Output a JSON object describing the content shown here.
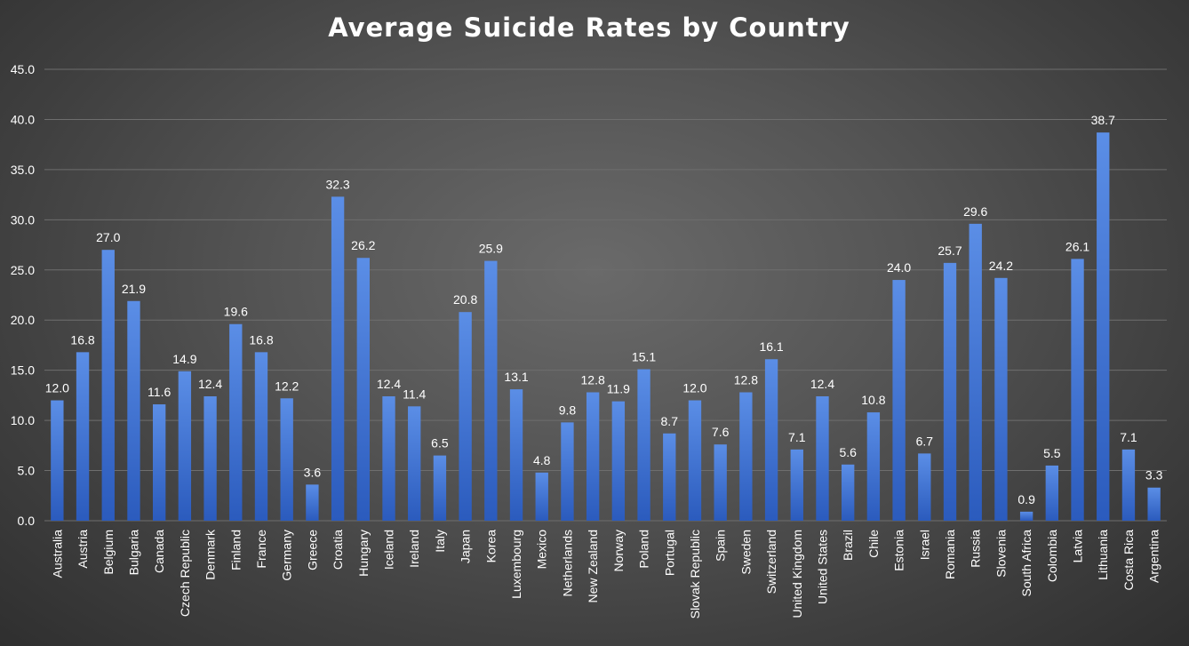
{
  "chart_data": {
    "type": "bar",
    "title": "Average Suicide Rates by Country",
    "xlabel": "",
    "ylabel": "",
    "ylim": [
      0,
      45
    ],
    "yticks": [
      "0.0",
      "5.0",
      "10.0",
      "15.0",
      "20.0",
      "25.0",
      "30.0",
      "35.0",
      "40.0",
      "45.0"
    ],
    "grid": true,
    "legend": "none",
    "categories": [
      "Australia",
      "Austria",
      "Belgium",
      "Bulgaria",
      "Canada",
      "Czech Republic",
      "Denmark",
      "Finland",
      "France",
      "Germany",
      "Greece",
      "Croatia",
      "Hungary",
      "Iceland",
      "Ireland",
      "Italy",
      "Japan",
      "Korea",
      "Luxembourg",
      "Mexico",
      "Netherlands",
      "New Zealand",
      "Norway",
      "Poland",
      "Portugal",
      "Slovak Republic",
      "Spain",
      "Sweden",
      "Switzerland",
      "United Kingdom",
      "United States",
      "Brazil",
      "Chile",
      "Estonia",
      "Israel",
      "Romania",
      "Russia",
      "Slovenia",
      "South Africa",
      "Colombia",
      "Latvia",
      "Lithuania",
      "Costa Rica",
      "Argentina"
    ],
    "values": [
      12.0,
      16.8,
      27.0,
      21.9,
      11.6,
      14.9,
      12.4,
      19.6,
      16.8,
      12.2,
      3.6,
      32.3,
      26.2,
      12.4,
      11.4,
      6.5,
      20.8,
      25.9,
      13.1,
      4.8,
      9.8,
      12.8,
      11.9,
      15.1,
      8.7,
      12.0,
      7.6,
      12.8,
      16.1,
      7.1,
      12.4,
      5.6,
      10.8,
      24.0,
      6.7,
      25.7,
      29.6,
      24.2,
      0.9,
      5.5,
      26.1,
      38.7,
      7.1,
      3.3
    ],
    "data_labels": [
      "12.0",
      "16.8",
      "27.0",
      "21.9",
      "11.6",
      "14.9",
      "12.4",
      "19.6",
      "16.8",
      "12.2",
      "3.6",
      "32.3",
      "26.2",
      "12.4",
      "11.4",
      "6.5",
      "20.8",
      "25.9",
      "13.1",
      "4.8",
      "9.8",
      "12.8",
      "11.9",
      "15.1",
      "8.7",
      "12.0",
      "7.6",
      "12.8",
      "16.1",
      "7.1",
      "12.4",
      "5.6",
      "10.8",
      "24.0",
      "6.7",
      "25.7",
      "29.6",
      "24.2",
      "0.9",
      "5.5",
      "26.1",
      "38.7",
      "7.1",
      "3.3"
    ],
    "colors": {
      "bar_top": "#5b8ee6",
      "bar_bottom": "#2b5bbd",
      "grid": "#6e6e6e",
      "text": "#ffffff"
    }
  }
}
